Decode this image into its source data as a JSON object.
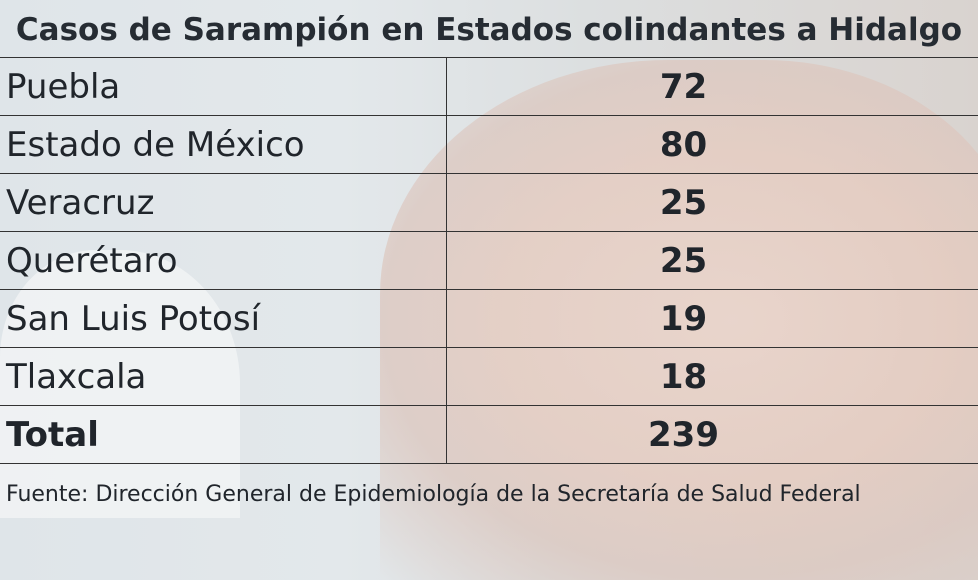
{
  "title": "Casos de Sarampión en Estados colindantes a Hidalgo",
  "rows": [
    {
      "state": "Puebla",
      "cases": "72"
    },
    {
      "state": "Estado de México",
      "cases": "80"
    },
    {
      "state": "Veracruz",
      "cases": "25"
    },
    {
      "state": "Querétaro",
      "cases": "25"
    },
    {
      "state": "San Luis Potosí",
      "cases": "19"
    },
    {
      "state": "Tlaxcala",
      "cases": "18"
    }
  ],
  "total": {
    "label": "Total",
    "cases": "239"
  },
  "source": "Fuente: Dirección General de Epidemiología de la Secretaría de Salud Federal"
}
